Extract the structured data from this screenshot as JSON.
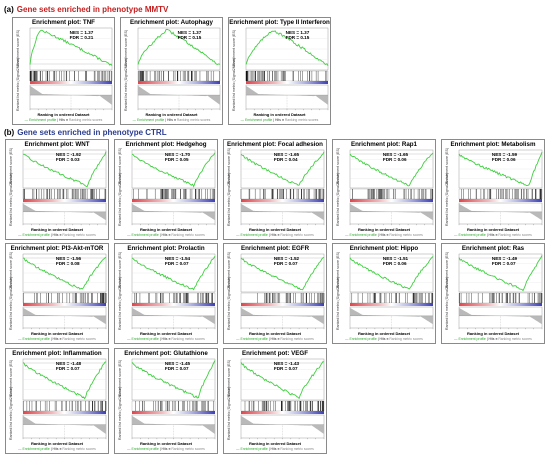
{
  "sections": [
    {
      "tag": "(a)",
      "title": "Gene sets enriched in phenotype MMTV"
    },
    {
      "tag": "(b)",
      "title": "Gene sets enriched in phenotype CTRL"
    }
  ],
  "common": {
    "xlabel": "Ranking in ordered Dataset",
    "ylabel_es": "Enrichment score (ES)",
    "ylabel_rank": "Ranked list metric (Signal2Noise)",
    "legend_es": "Enrichment profile",
    "legend_hits": "Hits",
    "legend_metric": "Ranking metric scores",
    "zero_cross": "Zero cross"
  },
  "panels": [
    {
      "title": "Enrichment plot: TNF",
      "nes": "NES = 1.37",
      "fdr": "FDR = 0.21",
      "direction": "pos",
      "peak": 0.12
    },
    {
      "title": "Enrichment plot: Autophagy",
      "nes": "NES = 1.37",
      "fdr": "FDR = 0.15",
      "direction": "pos",
      "peak": 0.35
    },
    {
      "title": "Enrichment plot: Type II Interferon",
      "nes": "NES = 1.37",
      "fdr": "FDR = 0.15",
      "direction": "pos",
      "peak": 0.32
    },
    {
      "title": "Enrichment plot: WNT",
      "nes": "NES = -1.92",
      "fdr": "FDR = 0.03",
      "direction": "neg",
      "peak": 0.78
    },
    {
      "title": "Enrichment plot: Hedgehog",
      "nes": "NES = -1.70",
      "fdr": "FDR = 0.05",
      "direction": "neg",
      "peak": 0.75
    },
    {
      "title": "Enrichment plot: Focal adhesion",
      "nes": "NES = -1.65",
      "fdr": "FDR = 0.04",
      "direction": "neg",
      "peak": 0.7
    },
    {
      "title": "Enrichment plot: Rap1",
      "nes": "NES = -1.65",
      "fdr": "FDR = 0.06",
      "direction": "neg",
      "peak": 0.72
    },
    {
      "title": "Enrichment plot: Metabolism",
      "nes": "NES = -1.59",
      "fdr": "FDR = 0.06",
      "direction": "neg",
      "peak": 0.85
    },
    {
      "title": "Enrichment plot: PI3-Akt-mTOR",
      "nes": "NES = -1.56",
      "fdr": "FDR = 0.08",
      "direction": "neg",
      "peak": 0.72
    },
    {
      "title": "Enrichment plot: Prolactin",
      "nes": "NES = -1.54",
      "fdr": "FDR = 0.07",
      "direction": "neg",
      "peak": 0.75
    },
    {
      "title": "Enrichment plot: EGFR",
      "nes": "NES = -1.52",
      "fdr": "FDR = 0.07",
      "direction": "neg",
      "peak": 0.75
    },
    {
      "title": "Enrichment plot: Hippo",
      "nes": "NES = -1.51",
      "fdr": "FDR = 0.06",
      "direction": "neg",
      "peak": 0.72
    },
    {
      "title": "Enrichment plot: Ras",
      "nes": "NES = -1.49",
      "fdr": "FDR = 0.07",
      "direction": "neg",
      "peak": 0.78
    },
    {
      "title": "Enrichment plot: Inflammation",
      "nes": "NES = -1.48",
      "fdr": "FDR = 0.07",
      "direction": "neg",
      "peak": 0.75
    },
    {
      "title": "Enrichment pot: Glutathione",
      "nes": "NES = -1.45",
      "fdr": "FDR = 0.07",
      "direction": "neg",
      "peak": 0.8
    },
    {
      "title": "Enrichment pot: VEGF",
      "nes": "NES = -1.43",
      "fdr": "FDR = 0.07",
      "direction": "neg",
      "peak": 0.7
    }
  ],
  "colors": {
    "es_line": "#3fcf3f",
    "hits": "#000000",
    "heat_high": "#e2454d",
    "heat_low": "#3d40b8",
    "metric_fill": "#b9b9b9",
    "section_a": "#c42020",
    "section_b": "#2a3d8f"
  }
}
